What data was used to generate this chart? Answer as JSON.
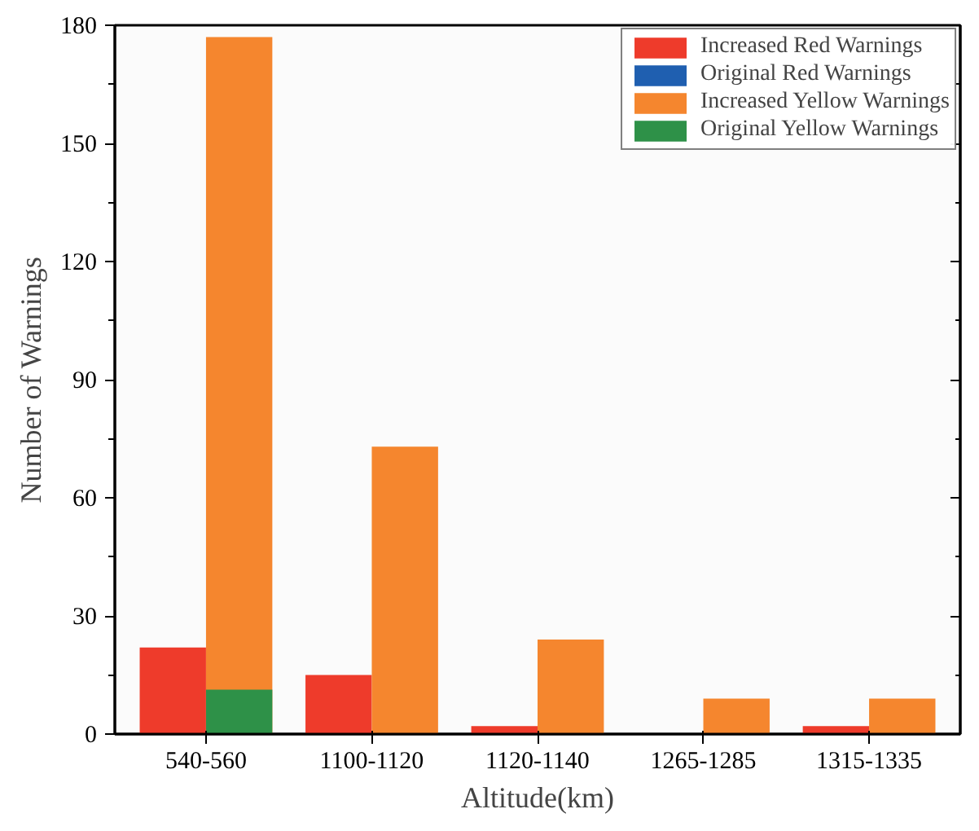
{
  "chart_data": {
    "type": "bar",
    "xlabel": "Altitude(km)",
    "ylabel": "Number of Warnings",
    "categories": [
      "540-560",
      "1100-1120",
      "1120-1140",
      "1265-1285",
      "1315-1335"
    ],
    "series": [
      {
        "name": "Increased Red Warnings",
        "color": "#ee3b2b",
        "values": [
          22,
          15,
          2,
          0,
          2
        ]
      },
      {
        "name": "Original Red Warnings",
        "color": "#1f5fb0",
        "values": [
          null,
          null,
          0,
          0,
          0
        ]
      },
      {
        "name": "Increased Yellow Warnings",
        "color": "#f5862e",
        "values": [
          177,
          73,
          24,
          9,
          9
        ]
      },
      {
        "name": "Original Yellow Warnings",
        "color": "#2e9148",
        "values": [
          11.3,
          null,
          0,
          0,
          0
        ]
      }
    ],
    "ylim": [
      0,
      180
    ],
    "yticks": [
      0,
      30,
      60,
      90,
      120,
      150,
      180
    ],
    "grid": false,
    "legend": "top right"
  }
}
